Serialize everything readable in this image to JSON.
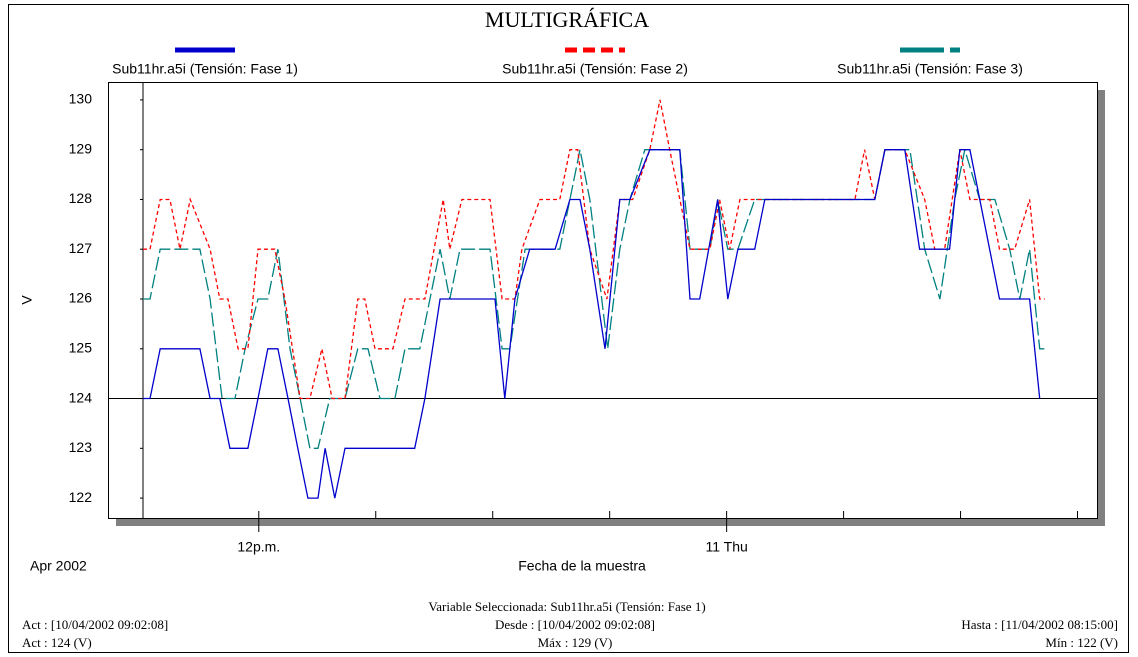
{
  "chart_data": {
    "type": "line",
    "title": "MULTIGRÁFICA",
    "ylabel": "V",
    "xlabel": "Fecha de la muestra",
    "x_period": "Apr 2002",
    "xlim": [
      9.03,
      33.5
    ],
    "ylim": [
      121.6,
      130.36
    ],
    "yticks": [
      122,
      123,
      124,
      125,
      126,
      127,
      128,
      129,
      130
    ],
    "xticks": [
      {
        "value": 12,
        "label": "12p.m."
      },
      {
        "value": 24,
        "label": "11 Thu"
      }
    ],
    "xminor_ticks": [
      9.03,
      15,
      18,
      21,
      27,
      30,
      33
    ],
    "reference_line": 124,
    "series": [
      {
        "name": "Sub11hr.a5i (Tensión: Fase 1)",
        "color": "#0000cc",
        "dash": "solid",
        "x": [
          9.03,
          9.21,
          9.47,
          10.49,
          10.75,
          11.0,
          11.26,
          11.72,
          11.98,
          12.23,
          12.49,
          12.75,
          13.0,
          13.26,
          13.52,
          13.7,
          13.95,
          14.21,
          16.0,
          16.26,
          16.65,
          18.06,
          18.31,
          18.57,
          18.95,
          19.6,
          19.98,
          20.24,
          20.49,
          20.88,
          21.26,
          21.52,
          22.03,
          22.8,
          23.06,
          23.31,
          23.77,
          24.03,
          24.29,
          24.72,
          24.98,
          27.8,
          28.06,
          28.57,
          28.95,
          29.72,
          29.98,
          30.24,
          31.0,
          31.77,
          32.03
        ],
        "values": [
          124,
          124,
          125,
          125,
          124,
          124,
          123,
          123,
          124,
          125,
          125,
          124,
          123,
          122,
          122,
          123,
          122,
          123,
          123,
          124,
          126,
          126,
          124,
          126,
          127,
          127,
          128,
          128,
          127,
          125,
          128,
          128,
          129,
          129,
          126,
          126,
          128,
          126,
          127,
          127,
          128,
          128,
          129,
          129,
          127,
          127,
          129,
          129,
          126,
          126,
          124
        ]
      },
      {
        "name": "Sub11hr.a5i (Tensión: Fase 2)",
        "color": "#ff0000",
        "dash": "short",
        "x": [
          9.03,
          9.21,
          9.47,
          9.72,
          9.98,
          10.24,
          10.75,
          11.0,
          11.21,
          11.47,
          11.72,
          11.98,
          12.41,
          12.67,
          13.06,
          13.31,
          13.62,
          13.88,
          14.21,
          14.54,
          14.72,
          14.98,
          15.44,
          15.75,
          16.26,
          16.73,
          16.9,
          17.21,
          17.93,
          18.24,
          18.57,
          18.75,
          19.21,
          19.72,
          19.98,
          20.18,
          20.49,
          20.93,
          21.26,
          21.59,
          22.03,
          22.29,
          22.54,
          23.06,
          23.57,
          23.82,
          24.08,
          24.34,
          24.72,
          24.98,
          27.29,
          27.54,
          27.8,
          28.06,
          28.57,
          29.08,
          29.34,
          29.59,
          29.98,
          30.24,
          30.75,
          31.0,
          31.39,
          31.77,
          32.03,
          32.16
        ],
        "values": [
          127,
          127,
          128,
          128,
          127,
          128,
          127,
          126,
          126,
          125,
          125,
          127,
          127,
          126,
          124,
          124,
          125,
          124,
          124,
          126,
          126,
          125,
          125,
          126,
          126,
          128,
          127,
          128,
          128,
          126,
          126,
          127,
          128,
          128,
          129,
          129,
          127,
          126,
          128,
          128,
          129,
          130,
          129,
          127,
          127,
          128,
          127,
          128,
          128,
          128,
          128,
          129,
          128,
          129,
          129,
          128,
          127,
          127,
          129,
          128,
          128,
          127,
          127,
          128,
          126,
          126
        ]
      },
      {
        "name": "Sub11hr.a5i (Tensión: Fase 3)",
        "color": "#008080",
        "dash": "long",
        "x": [
          9.03,
          9.21,
          9.47,
          10.49,
          10.75,
          11.06,
          11.39,
          11.65,
          11.98,
          12.23,
          12.49,
          12.8,
          13.06,
          13.31,
          13.52,
          13.82,
          14.21,
          14.54,
          14.8,
          15.11,
          15.49,
          15.75,
          16.13,
          16.65,
          16.9,
          17.16,
          17.93,
          18.24,
          18.44,
          18.83,
          19.72,
          19.98,
          20.24,
          20.49,
          20.95,
          21.26,
          21.52,
          21.9,
          22.8,
          23.06,
          23.57,
          23.77,
          24.03,
          24.29,
          24.72,
          24.98,
          27.8,
          28.06,
          28.7,
          29.08,
          29.47,
          29.85,
          30.11,
          30.49,
          30.88,
          31.26,
          31.52,
          31.77,
          32.03,
          32.24
        ],
        "values": [
          126,
          126,
          127,
          127,
          126,
          124,
          124,
          125,
          126,
          126,
          127,
          125,
          124,
          123,
          123,
          124,
          124,
          125,
          125,
          124,
          124,
          125,
          125,
          127,
          126,
          127,
          127,
          125,
          125,
          127,
          127,
          128,
          129,
          128,
          125,
          127,
          128,
          129,
          129,
          127,
          127,
          128,
          127,
          127,
          128,
          128,
          128,
          129,
          129,
          127,
          126,
          128,
          129,
          128,
          128,
          127,
          126,
          127,
          125,
          125
        ]
      }
    ]
  },
  "footer": {
    "variable": "Variable Seleccionada: Sub11hr.a5i (Tensión: Fase 1)",
    "act_date": "Act : [10/04/2002 09:02:08]",
    "desde": "Desde : [10/04/2002 09:02:08]",
    "hasta": "Hasta : [11/04/2002 08:15:00]",
    "act_value": "Act : 124 (V)",
    "max": "Máx : 129 (V)",
    "min": "Mín : 122 (V)"
  }
}
